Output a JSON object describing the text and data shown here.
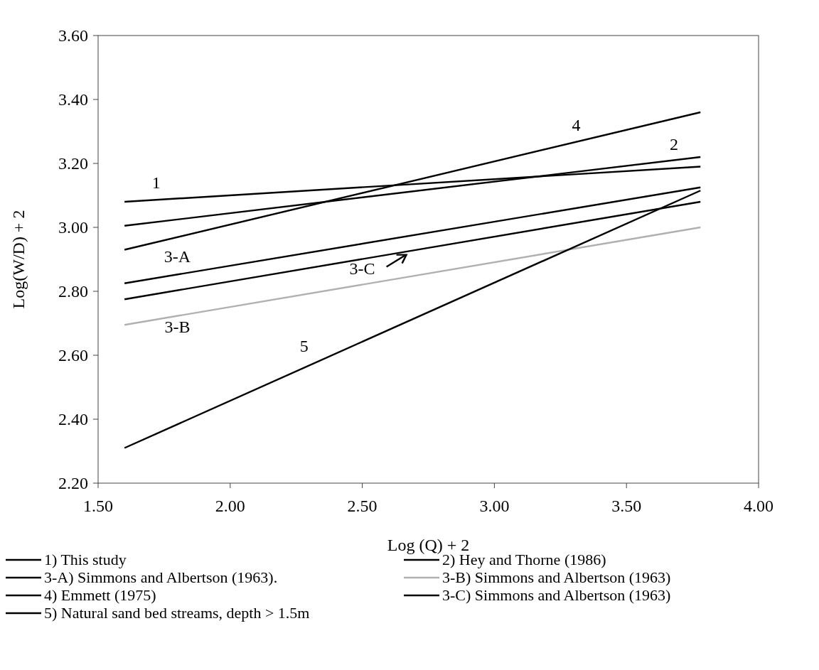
{
  "chart_data": {
    "type": "line",
    "xlabel": "Log (Q) + 2",
    "ylabel": "Log(W/D) + 2",
    "xlim": [
      1.5,
      4.0
    ],
    "xticks": [
      {
        "value": 1.5,
        "label": "1.50"
      },
      {
        "value": 2.0,
        "label": "2.00"
      },
      {
        "value": 2.5,
        "label": "2.50"
      },
      {
        "value": 3.0,
        "label": "3.00"
      },
      {
        "value": 3.5,
        "label": "3.50"
      },
      {
        "value": 4.0,
        "label": "4.00"
      }
    ],
    "ylim": [
      2.2,
      3.6
    ],
    "yticks": [
      {
        "value": 2.2,
        "label": "2.20"
      },
      {
        "value": 2.4,
        "label": "2.40"
      },
      {
        "value": 2.6,
        "label": "2.60"
      },
      {
        "value": 2.8,
        "label": "2.80"
      },
      {
        "value": 3.0,
        "label": "3.00"
      },
      {
        "value": 3.2,
        "label": "3.20"
      },
      {
        "value": 3.4,
        "label": "3.40"
      },
      {
        "value": 3.6,
        "label": "3.60"
      }
    ],
    "x": [
      1.6,
      3.78
    ],
    "grid": false,
    "legend": "bottom",
    "marker": "none",
    "line_style": "solid",
    "series": [
      {
        "name": "1) This study",
        "color": "#000000",
        "values": [
          3.08,
          3.19
        ]
      },
      {
        "name": "2) Hey and Thorne (1986)",
        "color": "#000000",
        "values": [
          3.005,
          3.22
        ]
      },
      {
        "name": "3-A) Simmons and Albertson (1963).",
        "color": "#000000",
        "values": [
          2.825,
          3.125
        ]
      },
      {
        "name": "3-B) Simmons and Albertson (1963)",
        "color": "#b0b0b0",
        "values": [
          2.695,
          3.0
        ]
      },
      {
        "name": "4) Emmett (1975)",
        "color": "#000000",
        "values": [
          2.93,
          3.36
        ]
      },
      {
        "name": "3-C) Simmons and Albertson (1963)",
        "color": "#000000",
        "values": [
          2.775,
          3.08
        ]
      },
      {
        "name": "5) Natural sand bed streams, depth > 1.5m",
        "color": "#000000",
        "values": [
          2.31,
          3.115
        ]
      }
    ],
    "annotations": [
      "1",
      "2",
      "3-A",
      "3-B",
      "3-C",
      "4",
      "5"
    ]
  }
}
